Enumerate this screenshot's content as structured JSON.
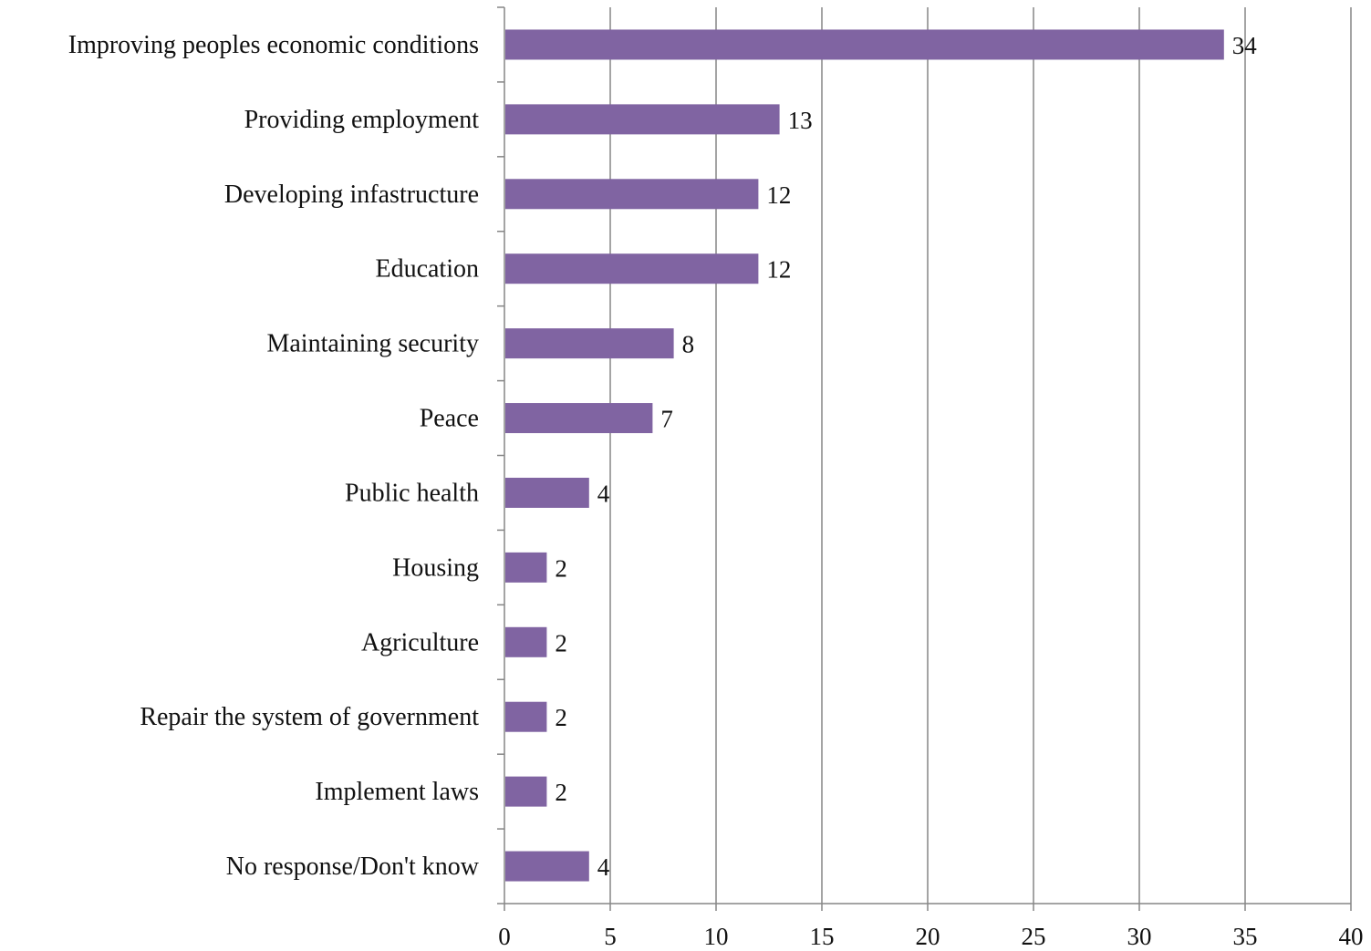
{
  "chart_data": {
    "type": "bar",
    "orientation": "horizontal",
    "categories": [
      "Improving peoples economic conditions",
      "Providing employment",
      "Developing infastructure",
      "Education",
      "Maintaining security",
      "Peace",
      "Public health",
      "Housing",
      "Agriculture",
      "Repair the system of government",
      "Implement laws",
      "No response/Don't know"
    ],
    "values": [
      34,
      13,
      12,
      12,
      8,
      7,
      4,
      2,
      2,
      2,
      2,
      4
    ],
    "xlim": [
      0,
      40
    ],
    "xticks": [
      0,
      5,
      10,
      15,
      20,
      25,
      30,
      35,
      40
    ],
    "grid": "vertical",
    "legend": "none",
    "title": "",
    "xlabel": "",
    "ylabel": "",
    "bar_color": "#8064a2",
    "grid_color": "#868686"
  }
}
